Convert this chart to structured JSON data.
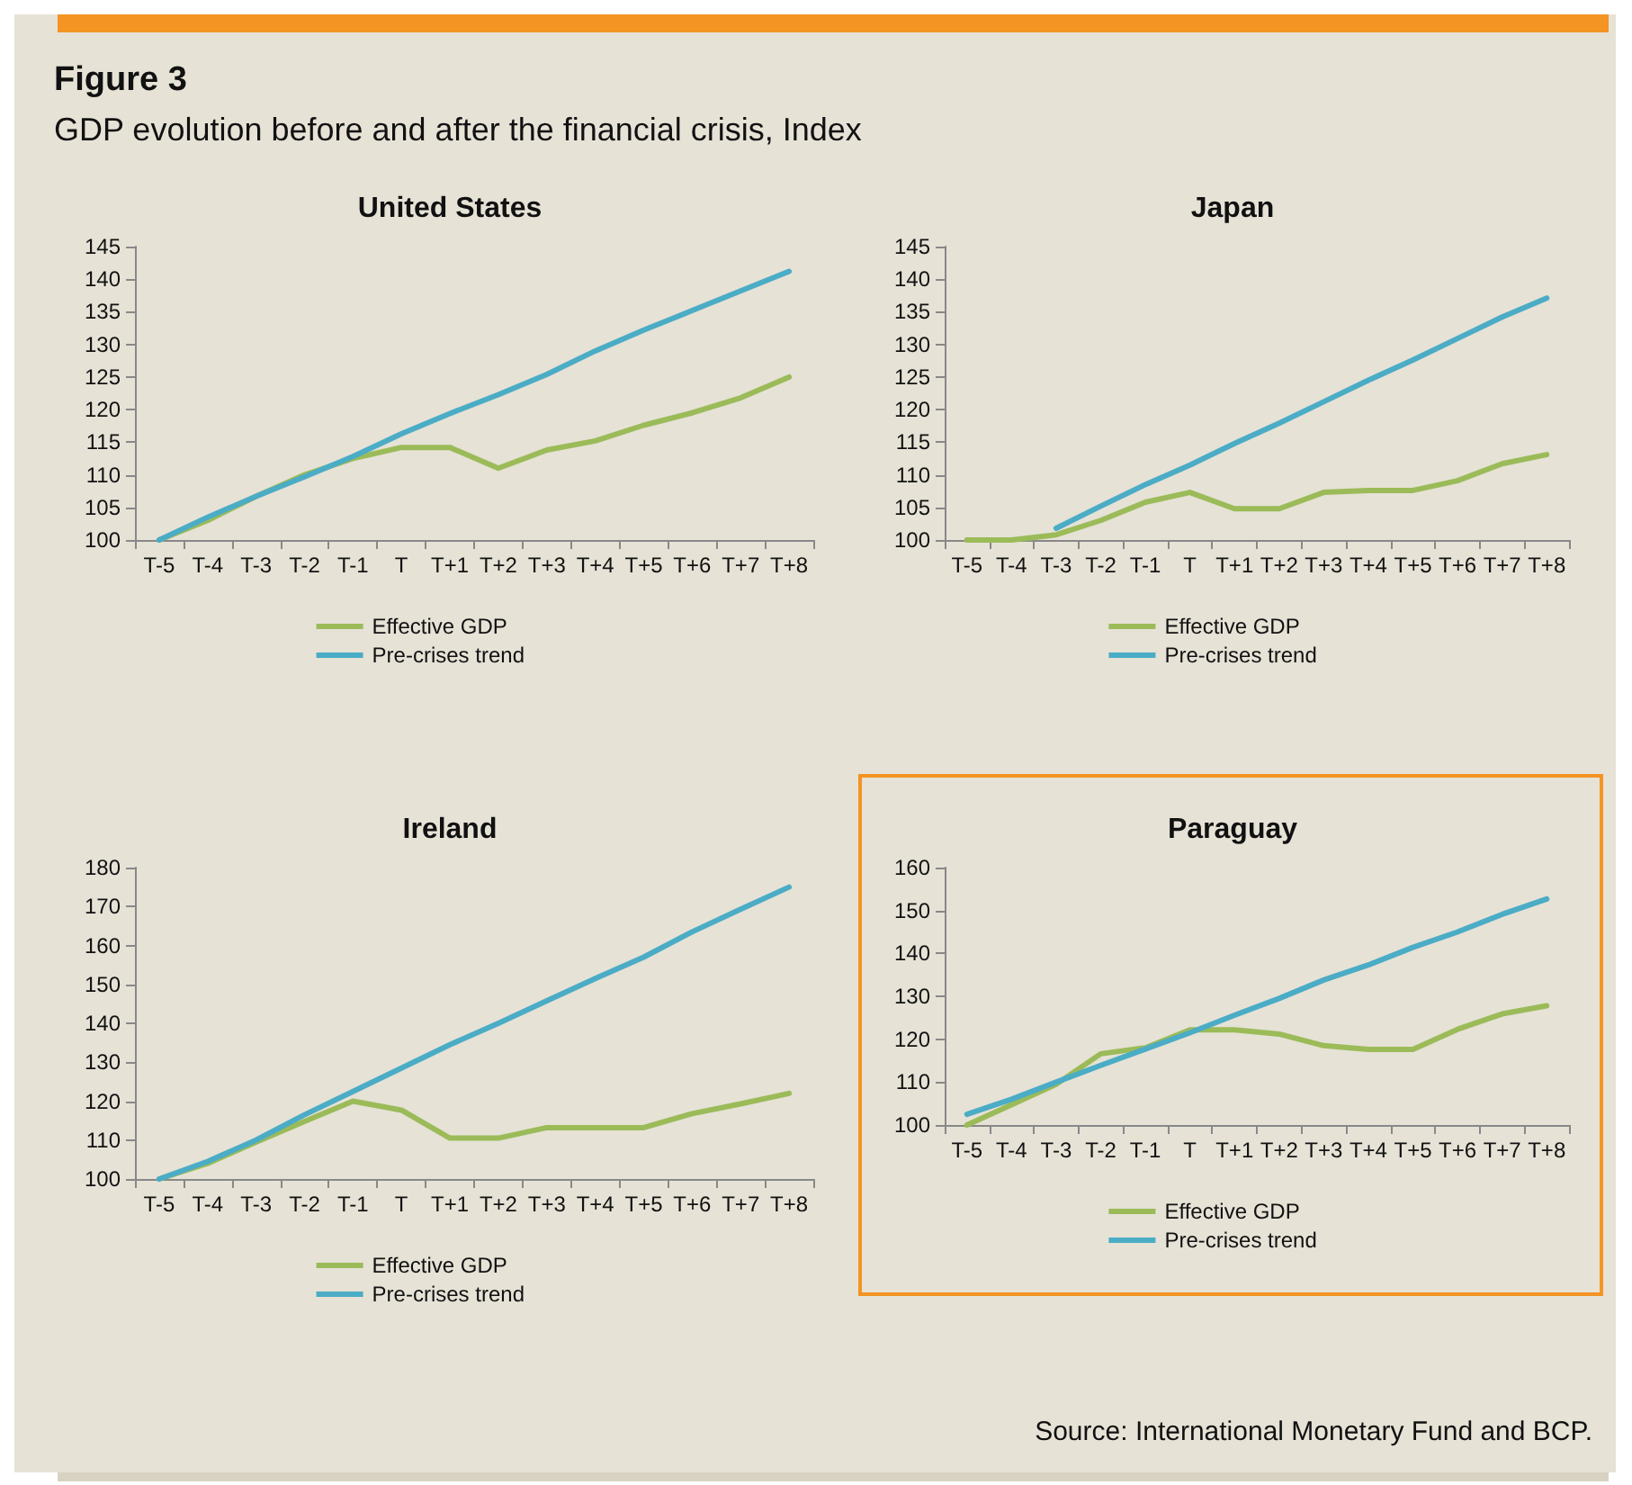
{
  "chart_data": [
    {
      "type": "other",
      "title": "Figure 3",
      "subtitle": "GDP evolution before and after the financial crisis, Index",
      "annotations": [
        "Source: International Monetary Fund and BCP."
      ]
    },
    {
      "type": "line",
      "title": "United States",
      "categories": [
        "T-5",
        "T-4",
        "T-3",
        "T-2",
        "T-1",
        "T",
        "T+1",
        "T+2",
        "T+3",
        "T+4",
        "T+5",
        "T+6",
        "T+7",
        "T+8"
      ],
      "ylim": [
        100,
        145
      ],
      "yticks": [
        100,
        105,
        110,
        115,
        120,
        125,
        130,
        135,
        140,
        145
      ],
      "legend": "bottom",
      "marker": "none",
      "series": [
        {
          "name": "Effective GDP",
          "color": "#9bbb59",
          "values": [
            100,
            103,
            106.7,
            110,
            112.5,
            114.2,
            114.2,
            111,
            113.8,
            115.2,
            117.6,
            119.5,
            121.8,
            125
          ]
        },
        {
          "name": "Pre-crises trend",
          "color": "#4bacc6",
          "values": [
            100,
            103.5,
            106.7,
            109.7,
            112.8,
            116.3,
            119.4,
            122.3,
            125.4,
            129,
            132.2,
            135.2,
            138.2,
            141.2
          ]
        }
      ]
    },
    {
      "type": "line",
      "title": "Japan",
      "categories": [
        "T-5",
        "T-4",
        "T-3",
        "T-2",
        "T-1",
        "T",
        "T+1",
        "T+2",
        "T+3",
        "T+4",
        "T+5",
        "T+6",
        "T+7",
        "T+8"
      ],
      "ylim": [
        100,
        145
      ],
      "yticks": [
        100,
        105,
        110,
        115,
        120,
        125,
        130,
        135,
        140,
        145
      ],
      "legend": "bottom",
      "marker": "none",
      "series": [
        {
          "name": "Effective GDP",
          "color": "#9bbb59",
          "values": [
            100,
            100,
            100.8,
            103,
            105.8,
            107.3,
            104.8,
            104.8,
            107.3,
            107.6,
            107.6,
            109.1,
            111.7,
            113.1
          ]
        },
        {
          "name": "Pre-crises trend",
          "color": "#4bacc6",
          "values": [
            null,
            null,
            101.8,
            105.2,
            108.5,
            111.5,
            114.8,
            117.9,
            121.2,
            124.5,
            127.6,
            130.9,
            134.2,
            137.1
          ]
        }
      ]
    },
    {
      "type": "line",
      "title": "Ireland",
      "categories": [
        "T-5",
        "T-4",
        "T-3",
        "T-2",
        "T-1",
        "T",
        "T+1",
        "T+2",
        "T+3",
        "T+4",
        "T+5",
        "T+6",
        "T+7",
        "T+8"
      ],
      "ylim": [
        100,
        180
      ],
      "yticks": [
        100,
        110,
        120,
        130,
        140,
        150,
        160,
        170,
        180
      ],
      "legend": "bottom",
      "marker": "none",
      "series": [
        {
          "name": "Effective GDP",
          "color": "#9bbb59",
          "values": [
            100,
            104,
            109.5,
            114.8,
            120,
            117.7,
            110.5,
            110.5,
            113.2,
            113.2,
            113.2,
            116.8,
            119.3,
            122
          ]
        },
        {
          "name": "Pre-crises trend",
          "color": "#4bacc6",
          "values": [
            100,
            104.5,
            110,
            116.5,
            122.5,
            128.5,
            134.5,
            140,
            145.8,
            151.5,
            157,
            163.5,
            169.3,
            175
          ]
        }
      ]
    },
    {
      "type": "line",
      "title": "Paraguay",
      "categories": [
        "T-5",
        "T-4",
        "T-3",
        "T-2",
        "T-1",
        "T",
        "T+1",
        "T+2",
        "T+3",
        "T+4",
        "T+5",
        "T+6",
        "T+7",
        "T+8"
      ],
      "ylim": [
        100,
        160
      ],
      "yticks": [
        100,
        110,
        120,
        130,
        140,
        150,
        160
      ],
      "legend": "bottom",
      "marker": "none",
      "series": [
        {
          "name": "Effective GDP",
          "color": "#9bbb59",
          "values": [
            100,
            104.7,
            109.5,
            116.6,
            118,
            122.2,
            122.2,
            121.2,
            118.5,
            117.6,
            117.6,
            122.3,
            125.9,
            127.8
          ]
        },
        {
          "name": "Pre-crises trend",
          "color": "#4bacc6",
          "values": [
            102.5,
            106,
            110,
            113.9,
            117.7,
            121.5,
            125.6,
            129.5,
            133.8,
            137.3,
            141.4,
            145,
            149.1,
            152.7
          ]
        }
      ]
    }
  ]
}
